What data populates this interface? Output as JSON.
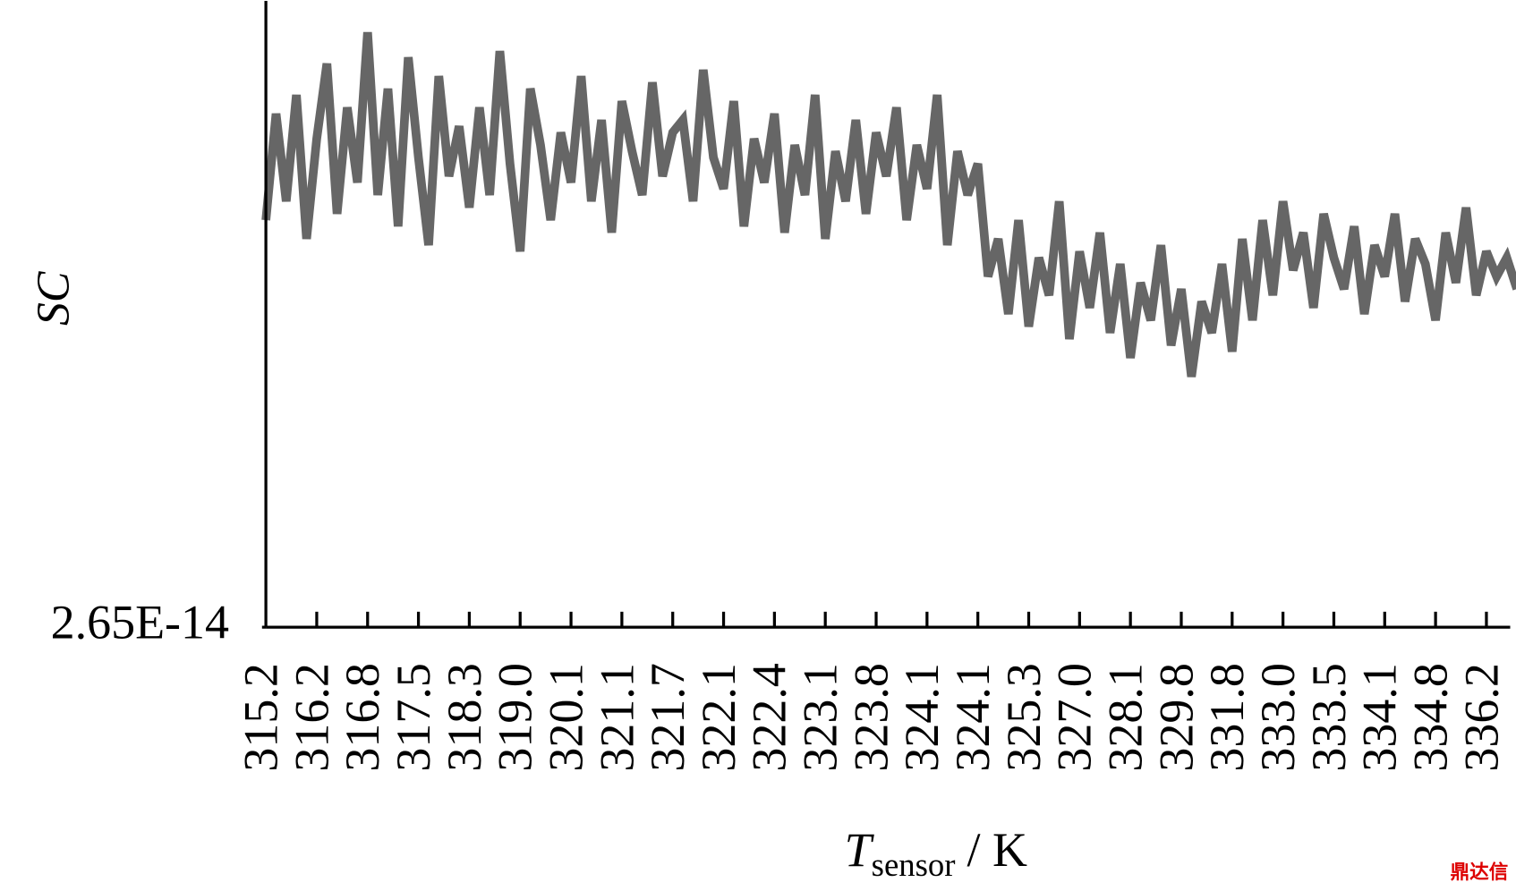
{
  "chart_data": {
    "type": "line",
    "y_label": "SC",
    "x_label": {
      "symbol": "T",
      "subscript": "sensor",
      "unit": "/ K"
    },
    "watermark": "鼎达信",
    "categories": [
      "315.2",
      null,
      null,
      null,
      null,
      "316.2",
      null,
      null,
      null,
      null,
      "316.8",
      null,
      null,
      null,
      null,
      "317.5",
      null,
      null,
      null,
      null,
      "318.3",
      null,
      null,
      null,
      null,
      "319.0",
      null,
      null,
      null,
      null,
      "320.1",
      null,
      null,
      null,
      null,
      "321.1",
      null,
      null,
      null,
      null,
      "321.7",
      null,
      null,
      null,
      null,
      "322.1",
      null,
      null,
      null,
      null,
      "322.4",
      null,
      null,
      null,
      null,
      "323.1",
      null,
      null,
      null,
      null,
      "323.8",
      null,
      null,
      null,
      null,
      "324.1",
      null,
      null,
      null,
      null,
      "324.1",
      null,
      null,
      null,
      null,
      "325.3",
      null,
      null,
      null,
      null,
      "327.0",
      null,
      null,
      null,
      null,
      "328.1",
      null,
      null,
      null,
      null,
      "329.8",
      null,
      null,
      null,
      null,
      "331.8",
      null,
      null,
      null,
      null,
      "333.0",
      null,
      null,
      null,
      null,
      "333.5",
      null,
      null,
      null,
      null,
      "334.1",
      null,
      null,
      null,
      null,
      "334.8",
      null,
      null,
      null,
      null,
      "336.2",
      null,
      null,
      null
    ],
    "series": [
      {
        "name": "SC",
        "color": "#666666",
        "values": [
          2.715e-14,
          2.732e-14,
          2.718e-14,
          2.735e-14,
          2.712e-14,
          2.728e-14,
          2.74e-14,
          2.716e-14,
          2.733e-14,
          2.721e-14,
          2.745e-14,
          2.719e-14,
          2.736e-14,
          2.714e-14,
          2.741e-14,
          2.725e-14,
          2.711e-14,
          2.738e-14,
          2.722e-14,
          2.73e-14,
          2.717e-14,
          2.733e-14,
          2.719e-14,
          2.742e-14,
          2.724e-14,
          2.71e-14,
          2.736e-14,
          2.727e-14,
          2.715e-14,
          2.729e-14,
          2.721e-14,
          2.738e-14,
          2.718e-14,
          2.731e-14,
          2.713e-14,
          2.734e-14,
          2.726e-14,
          2.719e-14,
          2.737e-14,
          2.722e-14,
          2.729e-14,
          2.731e-14,
          2.718e-14,
          2.739e-14,
          2.725e-14,
          2.72e-14,
          2.734e-14,
          2.714e-14,
          2.728e-14,
          2.721e-14,
          2.732e-14,
          2.713e-14,
          2.727e-14,
          2.719e-14,
          2.735e-14,
          2.712e-14,
          2.726e-14,
          2.718e-14,
          2.731e-14,
          2.716e-14,
          2.729e-14,
          2.722e-14,
          2.733e-14,
          2.715e-14,
          2.727e-14,
          2.72e-14,
          2.735e-14,
          2.711e-14,
          2.726e-14,
          2.719e-14,
          2.724e-14,
          2.706e-14,
          2.712e-14,
          2.7e-14,
          2.715e-14,
          2.698e-14,
          2.709e-14,
          2.703e-14,
          2.718e-14,
          2.696e-14,
          2.71e-14,
          2.701e-14,
          2.713e-14,
          2.697e-14,
          2.708e-14,
          2.693e-14,
          2.705e-14,
          2.699e-14,
          2.711e-14,
          2.695e-14,
          2.704e-14,
          2.69e-14,
          2.702e-14,
          2.697e-14,
          2.708e-14,
          2.694e-14,
          2.712e-14,
          2.699e-14,
          2.715e-14,
          2.703e-14,
          2.718e-14,
          2.707e-14,
          2.713e-14,
          2.701e-14,
          2.716e-14,
          2.709e-14,
          2.704e-14,
          2.714e-14,
          2.7e-14,
          2.711e-14,
          2.706e-14,
          2.716e-14,
          2.702e-14,
          2.712e-14,
          2.708e-14,
          2.699e-14,
          2.713e-14,
          2.705e-14,
          2.717e-14,
          2.703e-14,
          2.71e-14,
          2.706e-14,
          2.709e-14,
          2.704e-14
        ]
      }
    ],
    "ylim": [
      2.65e-14,
      2.75e-14
    ],
    "yticks": [
      {
        "value": 2.65e-14,
        "label": "2.65E-14"
      }
    ]
  }
}
